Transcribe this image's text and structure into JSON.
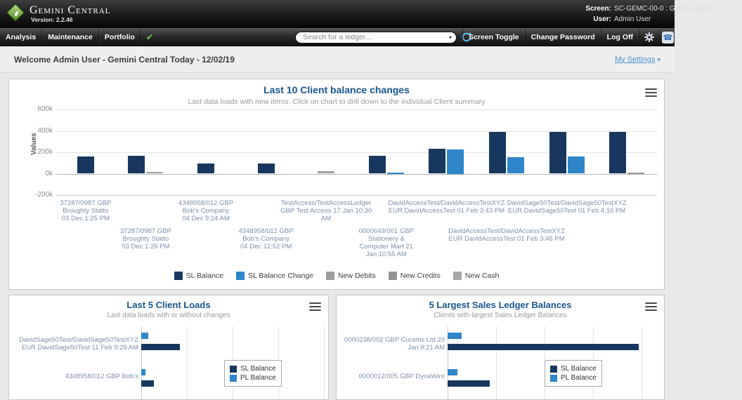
{
  "header": {
    "app_name": "Gemini Central",
    "version": "Version: 2.2.46",
    "screen_label": "Screen:",
    "screen_value": "SC-GEMC-00-0 : Gemini Centra",
    "user_label": "User:",
    "user_value": "Admin User"
  },
  "menubar": {
    "items": [
      "Analysis",
      "Maintenance",
      "Portfolio"
    ],
    "search_placeholder": "Search for a ledger....",
    "right_items": [
      "Screen Toggle",
      "Change Password",
      "Log Off"
    ]
  },
  "welcome": {
    "text": "Welcome Admin User - Gemini Central Today - 12/02/19",
    "settings_link": "My Settings"
  },
  "chart_data": [
    {
      "id": "main",
      "type": "bar",
      "title": "Last 10 Client balance changes",
      "subtitle": "Last data loads with new items. Click on chart to drill down to the individual Client summary",
      "ylabel": "Values",
      "unit": "thousands",
      "ylim": [
        -200,
        600
      ],
      "yticks": [
        "600k",
        "400k",
        "200k",
        "0k",
        "-200k"
      ],
      "grid": true,
      "legend_position": "bottom",
      "legend": [
        {
          "label": "SL Balance",
          "color": "#17375e"
        },
        {
          "label": "SL Balance Change",
          "color": "#2f86c9"
        },
        {
          "label": "New Debits",
          "color": "#9e9e9e"
        },
        {
          "label": "New Credits",
          "color": "#929292"
        },
        {
          "label": "New Cash",
          "color": "#a6a6a6"
        }
      ],
      "groups": [
        {
          "label_lines": [
            "37287/0987 GBP",
            "Broughty Statto",
            "03 Dec 1:25 PM"
          ],
          "label_row": "top",
          "bars": [
            {
              "series": "SL Balance",
              "value": 160
            }
          ]
        },
        {
          "label_lines": [
            "37287/0987 GBP",
            "Broughty Statto",
            "03 Dec 1:26 PM"
          ],
          "label_row": "bottom",
          "bars": [
            {
              "series": "SL Balance",
              "value": 165
            },
            {
              "series": "New Debits",
              "value": 15
            }
          ]
        },
        {
          "label_lines": [
            "4348958/012 GBP",
            "Bob's Company",
            "04 Dec 9:24 AM"
          ],
          "label_row": "top",
          "bars": [
            {
              "series": "SL Balance",
              "value": 95
            }
          ]
        },
        {
          "label_lines": [
            "4348958/012 GBP",
            "Bob's Company",
            "04 Dec 12:52 PM"
          ],
          "label_row": "bottom",
          "bars": [
            {
              "series": "SL Balance",
              "value": 95
            }
          ]
        },
        {
          "label_lines": [
            "TestAccess/TestAccessLedger",
            "GBP Test Access 17 Jan 10:30",
            "AM"
          ],
          "label_row": "top",
          "bars": [
            {
              "series": "New Debits",
              "value": 20
            }
          ]
        },
        {
          "label_lines": [
            "0000649/001 GBP",
            "Stationery &",
            "Computer Mart 21",
            "Jan 10:55 AM"
          ],
          "label_row": "bottom",
          "bars": [
            {
              "series": "SL Balance",
              "value": 165
            },
            {
              "series": "SL Balance Change",
              "value": 6
            }
          ]
        },
        {
          "label_lines": [
            "DavidAccessTest/DavidAccessTestXYZ",
            "EUR DavidAccessTest 01 Feb 3:43 PM"
          ],
          "label_row": "top",
          "bars": [
            {
              "series": "SL Balance",
              "value": 230
            },
            {
              "series": "SL Balance Change",
              "value": 225
            }
          ]
        },
        {
          "label_lines": [
            "DavidAccessTest/DavidAccessTestXYZ",
            "EUR DavidAccessTest 01 Feb 3:46 PM"
          ],
          "label_row": "bottom",
          "bars": [
            {
              "series": "SL Balance",
              "value": 390
            },
            {
              "series": "SL Balance Change",
              "value": 155
            }
          ]
        },
        {
          "label_lines": [
            "DavidSage50Test/DavidSage50TestXYZ",
            "EUR DavidSage50Test 01 Feb 4:16 PM"
          ],
          "label_row": "top",
          "bars": [
            {
              "series": "SL Balance",
              "value": 390
            },
            {
              "series": "SL Balance Change",
              "value": 160
            }
          ]
        },
        {
          "label_lines": [],
          "label_row": "bottom",
          "bars": [
            {
              "series": "SL Balance",
              "value": 390
            },
            {
              "series": "New Debits",
              "value": 12
            }
          ]
        }
      ]
    },
    {
      "id": "loads",
      "type": "bar-horizontal",
      "title": "Last 5 Client Loads",
      "subtitle": "Last data loads with or without changes",
      "legend": [
        {
          "label": "SL Balance",
          "color": "#17375e"
        },
        {
          "label": "PL Balance",
          "color": "#2f86c9"
        }
      ],
      "xmax": 260,
      "groups": [
        {
          "label_lines": [
            "DavidSage50Test/DavidSage50TestXYZ",
            "EUR DavidSage50Test 11 Feb 9:29 AM"
          ],
          "bars": [
            {
              "series": "PL Balance",
              "value": 10
            },
            {
              "series": "SL Balance",
              "value": 55
            }
          ]
        },
        {
          "label_lines": [
            "4348958/012 GBP Bob's"
          ],
          "bars": [
            {
              "series": "PL Balance",
              "value": 6
            },
            {
              "series": "SL Balance",
              "value": 18
            }
          ]
        }
      ]
    },
    {
      "id": "sales",
      "type": "bar-horizontal",
      "title": "5 Largest Sales Ledger Balances",
      "subtitle": "Clients with largest Sales Ledger Balances",
      "legend": [
        {
          "label": "SL Balance",
          "color": "#17375e"
        },
        {
          "label": "PL Balance",
          "color": "#2f86c9"
        }
      ],
      "xmax": 276,
      "groups": [
        {
          "label_lines": [
            "0000238/002 GBP Curartis Ltd 29",
            "Jan 9:21 AM"
          ],
          "bars": [
            {
              "series": "PL Balance",
              "value": 20
            },
            {
              "series": "SL Balance",
              "value": 272
            }
          ]
        },
        {
          "label_lines": [
            "0000012/005 GBP DynaWire"
          ],
          "bars": [
            {
              "series": "PL Balance",
              "value": 14
            },
            {
              "series": "SL Balance",
              "value": 60
            }
          ]
        }
      ]
    }
  ]
}
